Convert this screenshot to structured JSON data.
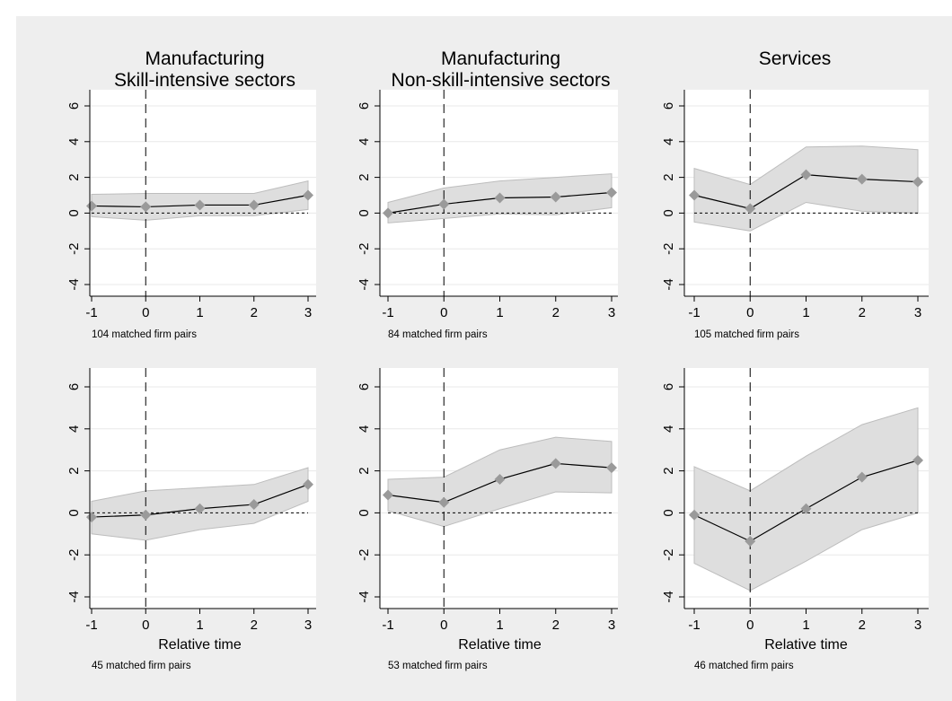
{
  "colors": {
    "outer_background": "#eeeeee",
    "plot_background": "#ffffff",
    "band_fill": "#dedede",
    "band_stroke": "#bdbdbd",
    "marker": "#9a9a9a",
    "line": "#000000",
    "gridline": "#e8e8e8"
  },
  "column_titles": [
    [
      "Manufacturing",
      "Skill-intensive sectors"
    ],
    [
      "Manufacturing",
      "Non-skill-intensive sectors"
    ],
    [
      "Services"
    ]
  ],
  "chart_data": [
    {
      "type": "line",
      "panel": "row1-col1",
      "x": [
        -1,
        0,
        1,
        2,
        3
      ],
      "y": [
        0.4,
        0.35,
        0.45,
        0.45,
        1.0
      ],
      "ci_low": [
        -0.2,
        -0.4,
        -0.15,
        -0.15,
        0.2
      ],
      "ci_high": [
        1.05,
        1.1,
        1.1,
        1.1,
        1.8
      ],
      "xlim": [
        -1,
        3
      ],
      "ylim": [
        -4,
        6
      ],
      "xticks": [
        "-1",
        "0",
        "1",
        "2",
        "3"
      ],
      "yticks": [
        "-4",
        "-2",
        "0",
        "2",
        "4",
        "6"
      ],
      "xlabel": "",
      "note": "104 matched firm pairs"
    },
    {
      "type": "line",
      "panel": "row1-col2",
      "x": [
        -1,
        0,
        1,
        2,
        3
      ],
      "y": [
        0.0,
        0.5,
        0.85,
        0.9,
        1.15
      ],
      "ci_low": [
        -0.55,
        -0.3,
        -0.05,
        -0.1,
        0.3
      ],
      "ci_high": [
        0.6,
        1.4,
        1.8,
        2.0,
        2.2
      ],
      "xlim": [
        -1,
        3
      ],
      "ylim": [
        -4,
        6
      ],
      "xticks": [
        "-1",
        "0",
        "1",
        "2",
        "3"
      ],
      "yticks": [
        "-4",
        "-2",
        "0",
        "2",
        "4",
        "6"
      ],
      "xlabel": "",
      "note": "84 matched firm pairs"
    },
    {
      "type": "line",
      "panel": "row1-col3",
      "x": [
        -1,
        0,
        1,
        2,
        3
      ],
      "y": [
        1.0,
        0.25,
        2.15,
        1.9,
        1.75
      ],
      "ci_low": [
        -0.5,
        -1.0,
        0.6,
        0.1,
        0.0
      ],
      "ci_high": [
        2.5,
        1.6,
        3.7,
        3.75,
        3.55
      ],
      "xlim": [
        -1,
        3
      ],
      "ylim": [
        -4,
        6
      ],
      "xticks": [
        "-1",
        "0",
        "1",
        "2",
        "3"
      ],
      "yticks": [
        "-4",
        "-2",
        "0",
        "2",
        "4",
        "6"
      ],
      "xlabel": "",
      "note": "105 matched firm pairs"
    },
    {
      "type": "line",
      "panel": "row2-col1",
      "x": [
        -1,
        0,
        1,
        2,
        3
      ],
      "y": [
        -0.2,
        -0.1,
        0.2,
        0.4,
        1.35
      ],
      "ci_low": [
        -1.0,
        -1.3,
        -0.8,
        -0.5,
        0.55
      ],
      "ci_high": [
        0.55,
        1.05,
        1.2,
        1.35,
        2.15
      ],
      "xlim": [
        -1,
        3
      ],
      "ylim": [
        -4,
        6
      ],
      "xticks": [
        "-1",
        "0",
        "1",
        "2",
        "3"
      ],
      "yticks": [
        "-4",
        "-2",
        "0",
        "2",
        "4",
        "6"
      ],
      "xlabel": "Relative time",
      "note": "45 matched firm pairs"
    },
    {
      "type": "line",
      "panel": "row2-col2",
      "x": [
        -1,
        0,
        1,
        2,
        3
      ],
      "y": [
        0.85,
        0.5,
        1.6,
        2.35,
        2.15
      ],
      "ci_low": [
        0.1,
        -0.65,
        0.2,
        1.0,
        0.95
      ],
      "ci_high": [
        1.6,
        1.7,
        3.0,
        3.6,
        3.4
      ],
      "xlim": [
        -1,
        3
      ],
      "ylim": [
        -4,
        6
      ],
      "xticks": [
        "-1",
        "0",
        "1",
        "2",
        "3"
      ],
      "yticks": [
        "-4",
        "-2",
        "0",
        "2",
        "4",
        "6"
      ],
      "xlabel": "Relative time",
      "note": "53 matched firm pairs"
    },
    {
      "type": "line",
      "panel": "row2-col3",
      "x": [
        -1,
        0,
        1,
        2,
        3
      ],
      "y": [
        -0.1,
        -1.35,
        0.2,
        1.7,
        2.5
      ],
      "ci_low": [
        -2.4,
        -3.7,
        -2.3,
        -0.8,
        0.0
      ],
      "ci_high": [
        2.2,
        1.05,
        2.7,
        4.2,
        5.0
      ],
      "xlim": [
        -1,
        3
      ],
      "ylim": [
        -4,
        6
      ],
      "xticks": [
        "-1",
        "0",
        "1",
        "2",
        "3"
      ],
      "yticks": [
        "-4",
        "-2",
        "0",
        "2",
        "4",
        "6"
      ],
      "xlabel": "Relative time",
      "note": "46 matched firm pairs"
    }
  ]
}
